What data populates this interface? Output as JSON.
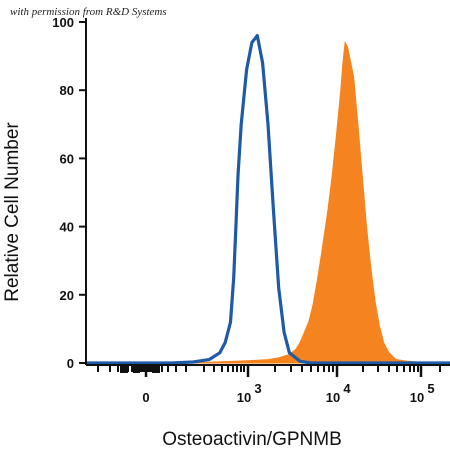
{
  "watermark": "with permission from R&D Systems",
  "chart_data": {
    "type": "area",
    "xlabel": "Osteoactivin/GPNMB",
    "ylabel": "Relative Cell Number",
    "x_scale": "biexponential",
    "y_ticks": [
      0,
      20,
      40,
      60,
      80,
      100
    ],
    "ylim": [
      0,
      100
    ],
    "x_ticks": [
      {
        "label": "0",
        "exp": ""
      },
      {
        "label": "10",
        "exp": "3"
      },
      {
        "label": "10",
        "exp": "4"
      },
      {
        "label": "10",
        "exp": "5"
      }
    ],
    "grid": false,
    "legend": "none",
    "series": [
      {
        "style": "line",
        "color": "#1f5aa6",
        "x": [
          0,
          20,
          40,
          60,
          80,
          100,
          115,
          125,
          130,
          135,
          138,
          140,
          142,
          145,
          150,
          155,
          160,
          165,
          170,
          175,
          180,
          185,
          190,
          200,
          210,
          220,
          240,
          260,
          280,
          300,
          320,
          340
        ],
        "y": [
          0,
          0,
          0,
          0,
          0,
          0.3,
          1,
          3,
          6,
          12,
          25,
          40,
          55,
          70,
          86,
          94,
          96,
          88,
          70,
          45,
          22,
          9,
          3,
          0.5,
          0,
          0,
          0,
          0,
          0,
          0,
          0,
          0
        ]
      },
      {
        "style": "fill",
        "color": "#f5831f",
        "x": [
          0,
          100,
          120,
          140,
          160,
          170,
          180,
          190,
          196,
          200,
          204,
          208,
          212,
          216,
          220,
          226,
          230,
          234,
          238,
          240,
          242,
          244,
          246,
          250,
          254,
          258,
          262,
          266,
          270,
          274,
          278,
          282,
          286,
          290,
          300,
          310,
          320,
          340
        ],
        "y": [
          0,
          0,
          0.3,
          0.5,
          0.8,
          1,
          1.5,
          2.5,
          4,
          6,
          9,
          12,
          17,
          24,
          32,
          45,
          55,
          67,
          80,
          88,
          94,
          93,
          90,
          84,
          70,
          55,
          40,
          28,
          18,
          11,
          6,
          3.5,
          2,
          1,
          0.5,
          0.3,
          0.3,
          0.3
        ]
      }
    ]
  }
}
